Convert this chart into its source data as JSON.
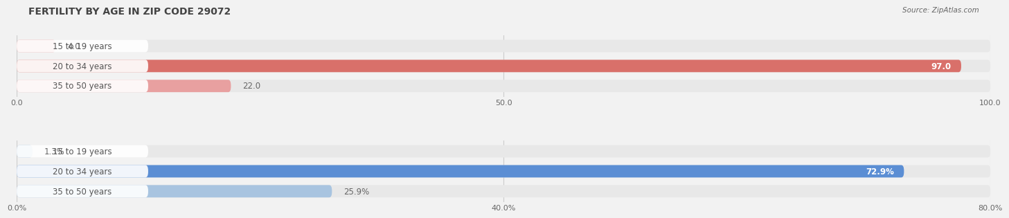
{
  "title": "FERTILITY BY AGE IN ZIP CODE 29072",
  "source": "Source: ZipAtlas.com",
  "top_bars": {
    "labels": [
      "15 to 19 years",
      "20 to 34 years",
      "35 to 50 years"
    ],
    "values": [
      4.0,
      97.0,
      22.0
    ],
    "max_val": 100.0,
    "x_ticks": [
      0.0,
      50.0,
      100.0
    ],
    "x_tick_labels": [
      "0.0",
      "50.0",
      "100.0"
    ],
    "bar_colors": [
      "#e8a0a0",
      "#d9706a",
      "#e8a0a0"
    ],
    "bar_bg_color": "#e8e8e8",
    "value_labels": [
      "4.0",
      "97.0",
      "22.0"
    ],
    "val_inside": [
      false,
      true,
      false
    ]
  },
  "bottom_bars": {
    "labels": [
      "15 to 19 years",
      "20 to 34 years",
      "35 to 50 years"
    ],
    "values": [
      1.625,
      91.125,
      32.375
    ],
    "display_values": [
      "1.3%",
      "72.9%",
      "25.9%"
    ],
    "max_val": 100.0,
    "x_ticks": [
      0.0,
      50.0,
      100.0
    ],
    "x_tick_labels": [
      "0.0%",
      "40.0%",
      "80.0%"
    ],
    "bar_colors": [
      "#a8c4e0",
      "#5b8ed4",
      "#a8c4e0"
    ],
    "bar_bg_color": "#e8e8e8",
    "value_labels": [
      "1.3%",
      "72.9%",
      "25.9%"
    ],
    "val_inside": [
      false,
      true,
      false
    ]
  },
  "title_fontsize": 10,
  "label_fontsize": 8.5,
  "value_fontsize": 8.5,
  "tick_fontsize": 8,
  "source_fontsize": 7.5,
  "bg_color": "#f2f2f2",
  "bar_height": 0.62,
  "label_bg_color": "#ffffff"
}
